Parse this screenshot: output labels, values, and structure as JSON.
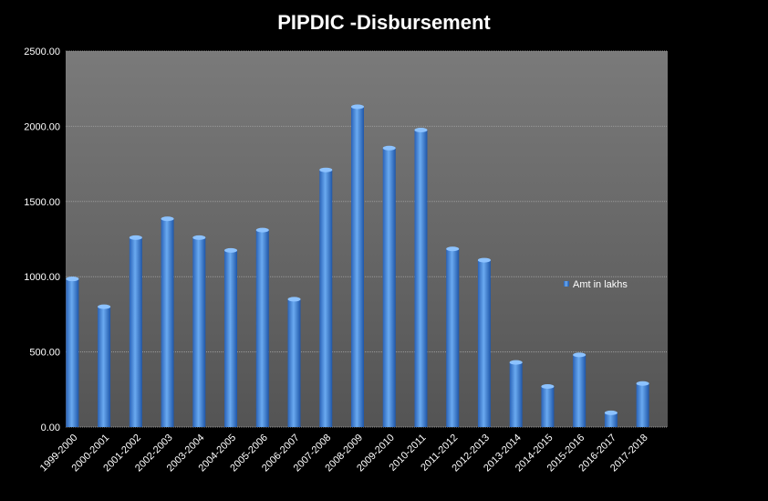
{
  "chart_data": {
    "type": "bar",
    "title": "PIPDIC -Disbursement",
    "xlabel": "",
    "ylabel": "",
    "ylim": [
      0,
      2500
    ],
    "yticks": [
      "0.00",
      "500.00",
      "1000.00",
      "1500.00",
      "2000.00",
      "2500.00"
    ],
    "grid": true,
    "legend_position": "right",
    "categories": [
      "1999-2000",
      "2000-2001",
      "2001-2002",
      "2002-2003",
      "2003-2004",
      "2004-2005",
      "2005-2006",
      "2006-2007",
      "2007-2008",
      "2008-2009",
      "2009-2010",
      "2010-2011",
      "2011-2012",
      "2012-2013",
      "2013-2014",
      "2014-2015",
      "2015-2016",
      "2016-2017",
      "2017-2018"
    ],
    "series": [
      {
        "name": "Amt in lakhs",
        "color": "#4a8ee0",
        "values": [
          985,
          800,
          1260,
          1385,
          1260,
          1175,
          1310,
          850,
          1710,
          2130,
          1855,
          1975,
          1185,
          1110,
          430,
          270,
          480,
          95,
          290
        ]
      }
    ]
  }
}
